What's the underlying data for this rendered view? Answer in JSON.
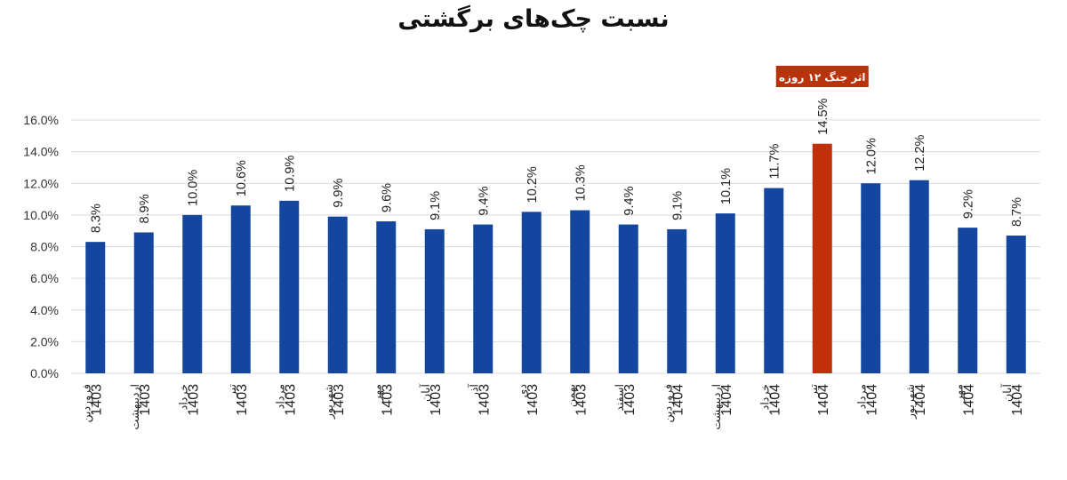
{
  "chart_data": {
    "type": "bar",
    "title": "نسبت چک‌های برگشتی",
    "categories": [
      [
        "1403",
        "فروردین"
      ],
      [
        "1403",
        "اردیبهشت"
      ],
      [
        "1403",
        "خرداد"
      ],
      [
        "1403",
        "تیر"
      ],
      [
        "1403",
        "مرداد"
      ],
      [
        "1403",
        "شهریور"
      ],
      [
        "1403",
        "مهر"
      ],
      [
        "1403",
        "آبان"
      ],
      [
        "1403",
        "آذر"
      ],
      [
        "1403",
        "دی"
      ],
      [
        "1403",
        "بهمن"
      ],
      [
        "1403",
        "اسفند"
      ],
      [
        "1404",
        "فروردین"
      ],
      [
        "1404",
        "اردیبهشت"
      ],
      [
        "1404",
        "خرداد"
      ],
      [
        "1404",
        "تیر"
      ],
      [
        "1404",
        "مرداد"
      ],
      [
        "1404",
        "شهریور"
      ],
      [
        "1404",
        "مهر"
      ],
      [
        "1404",
        "آبان"
      ]
    ],
    "values": [
      8.3,
      8.9,
      10.0,
      10.6,
      10.9,
      9.9,
      9.6,
      9.1,
      9.4,
      10.2,
      10.3,
      9.4,
      9.1,
      10.1,
      11.7,
      14.5,
      12.0,
      12.2,
      9.2,
      8.7
    ],
    "value_labels": [
      "8.3%",
      "8.9%",
      "10.0%",
      "10.6%",
      "10.9%",
      "9.9%",
      "9.6%",
      "9.1%",
      "9.4%",
      "10.2%",
      "10.3%",
      "9.4%",
      "9.1%",
      "10.1%",
      "11.7%",
      "14.5%",
      "12.0%",
      "12.2%",
      "9.2%",
      "8.7%"
    ],
    "ylim": [
      0,
      16
    ],
    "yticks": [
      "0.0%",
      "2.0%",
      "4.0%",
      "6.0%",
      "8.0%",
      "10.0%",
      "12.0%",
      "14.0%",
      "16.0%"
    ],
    "grid": true,
    "highlight_index": 15,
    "annotation": "اثر جنگ ۱۲ روزه",
    "colors": {
      "bar": "#1446a0",
      "highlight": "#c0300a",
      "annotation_bg": "#b8320c",
      "grid": "#d9d9d9"
    }
  }
}
